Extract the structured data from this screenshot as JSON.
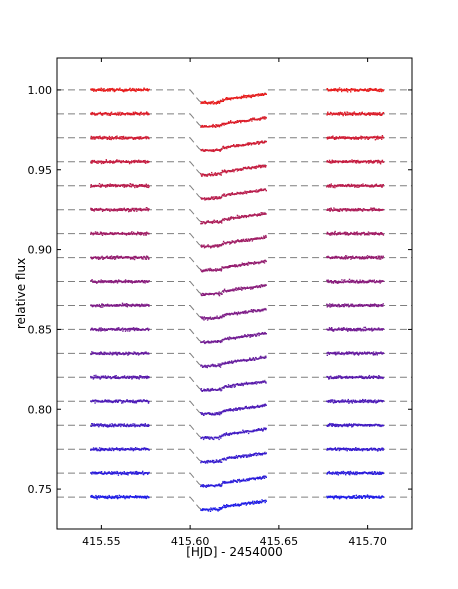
{
  "chart_data": {
    "type": "scatter",
    "title": "",
    "xlabel": "[HJD] - 2454000",
    "ylabel": "relative flux",
    "xlim": [
      415.525,
      415.725
    ],
    "ylim": [
      0.725,
      1.02
    ],
    "xticks": [
      415.55,
      415.6,
      415.65,
      415.7
    ],
    "xtick_labels": [
      "415.55",
      "415.60",
      "415.65",
      "415.70"
    ],
    "yticks": [
      0.75,
      0.8,
      0.85,
      0.9,
      0.95,
      1.0
    ],
    "ytick_labels": [
      "0.75",
      "0.80",
      "0.85",
      "0.90",
      "0.95",
      "1.00"
    ],
    "grid": false,
    "observation_windows": [
      [
        415.544,
        415.577
      ],
      [
        415.606,
        415.643
      ],
      [
        415.677,
        415.709
      ]
    ],
    "transit": {
      "ingress_start": 415.6,
      "ingress_end": 415.606,
      "depth": 0.008,
      "egress_slope": 0.25
    },
    "colors": {
      "first_series": "#e81c1c",
      "last_series": "#1f1ce8",
      "model_line": "#7f7f7f"
    },
    "series": [
      {
        "baseline": 1.0
      },
      {
        "baseline": 0.985
      },
      {
        "baseline": 0.97
      },
      {
        "baseline": 0.955
      },
      {
        "baseline": 0.94
      },
      {
        "baseline": 0.925
      },
      {
        "baseline": 0.91
      },
      {
        "baseline": 0.895
      },
      {
        "baseline": 0.88
      },
      {
        "baseline": 0.865
      },
      {
        "baseline": 0.85
      },
      {
        "baseline": 0.835
      },
      {
        "baseline": 0.82
      },
      {
        "baseline": 0.805
      },
      {
        "baseline": 0.79
      },
      {
        "baseline": 0.775
      },
      {
        "baseline": 0.76
      },
      {
        "baseline": 0.745
      }
    ]
  }
}
